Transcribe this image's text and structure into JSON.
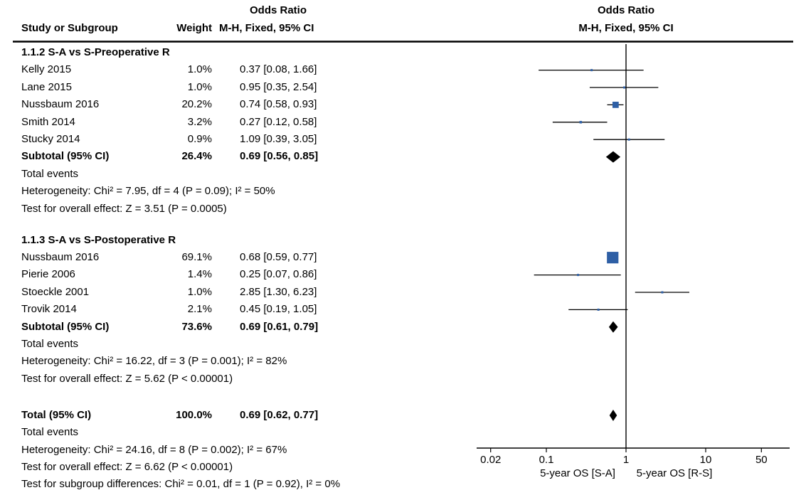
{
  "header": {
    "left_block": {
      "or_title": "Odds Ratio",
      "study_col": "Study or Subgroup",
      "weight_col": "Weight",
      "method_col": "M-H, Fixed, 95% CI"
    },
    "plot_block": {
      "or_title": "Odds Ratio",
      "method_col": "M-H, Fixed, 95% CI"
    }
  },
  "axis": {
    "scale": "log10",
    "ticks": [
      "0.02",
      "0.1",
      "1",
      "10",
      "50"
    ],
    "tick_values": [
      0.02,
      0.1,
      1,
      10,
      50
    ],
    "label_left": "5-year OS [S-A]",
    "label_right": "5-year OS [R-S]"
  },
  "colors": {
    "marker_blue": "#2e5fa5",
    "diamond_black": "#000000",
    "text": "#000000"
  },
  "chart_data": {
    "type": "forest",
    "effect_measure": "Odds Ratio, M-H, Fixed, 95% CI",
    "xlim": [
      0.02,
      50
    ],
    "groups": [
      {
        "name": "1.1.2 S-A vs S-Preoperative R",
        "studies": [
          {
            "study": "Kelly 2015",
            "weight": "1.0%",
            "weight_pct": 1.0,
            "or": 0.37,
            "ci_low": 0.08,
            "ci_high": 1.66,
            "ci_text": "0.37 [0.08, 1.66]"
          },
          {
            "study": "Lane 2015",
            "weight": "1.0%",
            "weight_pct": 1.0,
            "or": 0.95,
            "ci_low": 0.35,
            "ci_high": 2.54,
            "ci_text": "0.95 [0.35, 2.54]"
          },
          {
            "study": "Nussbaum 2016",
            "weight": "20.2%",
            "weight_pct": 20.2,
            "or": 0.74,
            "ci_low": 0.58,
            "ci_high": 0.93,
            "ci_text": "0.74 [0.58, 0.93]"
          },
          {
            "study": "Smith 2014",
            "weight": "3.2%",
            "weight_pct": 3.2,
            "or": 0.27,
            "ci_low": 0.12,
            "ci_high": 0.58,
            "ci_text": "0.27 [0.12, 0.58]"
          },
          {
            "study": "Stucky 2014",
            "weight": "0.9%",
            "weight_pct": 0.9,
            "or": 1.09,
            "ci_low": 0.39,
            "ci_high": 3.05,
            "ci_text": "1.09 [0.39, 3.05]"
          }
        ],
        "subtotal": {
          "label": "Subtotal (95% CI)",
          "weight": "26.4%",
          "or": 0.69,
          "ci_low": 0.56,
          "ci_high": 0.85,
          "ci_text": "0.69 [0.56, 0.85]"
        },
        "total_events_label": "Total events",
        "heterogeneity": "Heterogeneity: Chi² = 7.95, df = 4 (P = 0.09); I² = 50%",
        "overall_effect": "Test for overall effect: Z = 3.51 (P = 0.0005)"
      },
      {
        "name": "1.1.3 S-A vs S-Postoperative R",
        "studies": [
          {
            "study": "Nussbaum 2016",
            "weight": "69.1%",
            "weight_pct": 69.1,
            "or": 0.68,
            "ci_low": 0.59,
            "ci_high": 0.77,
            "ci_text": "0.68 [0.59, 0.77]"
          },
          {
            "study": "Pierie 2006",
            "weight": "1.4%",
            "weight_pct": 1.4,
            "or": 0.25,
            "ci_low": 0.07,
            "ci_high": 0.86,
            "ci_text": "0.25 [0.07, 0.86]"
          },
          {
            "study": "Stoeckle 2001",
            "weight": "1.0%",
            "weight_pct": 1.0,
            "or": 2.85,
            "ci_low": 1.3,
            "ci_high": 6.23,
            "ci_text": "2.85 [1.30, 6.23]"
          },
          {
            "study": "Trovik 2014",
            "weight": "2.1%",
            "weight_pct": 2.1,
            "or": 0.45,
            "ci_low": 0.19,
            "ci_high": 1.05,
            "ci_text": "0.45 [0.19, 1.05]"
          }
        ],
        "subtotal": {
          "label": "Subtotal (95% CI)",
          "weight": "73.6%",
          "or": 0.69,
          "ci_low": 0.61,
          "ci_high": 0.79,
          "ci_text": "0.69 [0.61, 0.79]"
        },
        "total_events_label": "Total events",
        "heterogeneity": "Heterogeneity: Chi² = 16.22, df = 3 (P = 0.001); I² = 82%",
        "overall_effect": "Test for overall effect: Z = 5.62 (P < 0.00001)"
      }
    ],
    "total": {
      "label": "Total (95% CI)",
      "weight": "100.0%",
      "or": 0.69,
      "ci_low": 0.62,
      "ci_high": 0.77,
      "ci_text": "0.69 [0.62, 0.77]",
      "total_events_label": "Total events",
      "heterogeneity": "Heterogeneity: Chi² = 24.16, df = 8 (P = 0.002); I² = 67%",
      "overall_effect": "Test for overall effect: Z = 6.62 (P < 0.00001)",
      "subgroup_diff": "Test for subgroup differences: Chi² = 0.01, df = 1 (P = 0.92), I² = 0%"
    }
  }
}
